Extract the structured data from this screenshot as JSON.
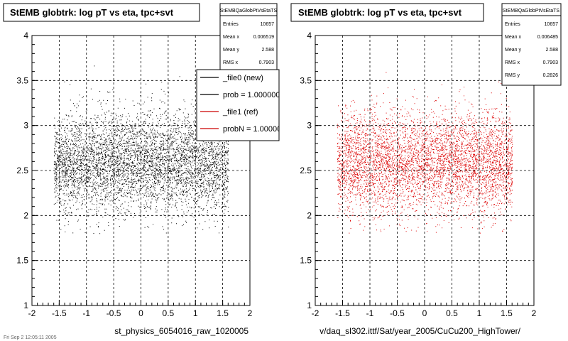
{
  "chart_data": [
    {
      "type": "scatter",
      "title": "StEMB globtrk: log pT vs eta, tpc+svt",
      "xlabel": "st_physics_6054016_raw_1020005",
      "ylabel": "",
      "xlim": [
        -2,
        2
      ],
      "ylim": [
        1,
        4
      ],
      "x_ticks": [
        "-2",
        "-1.5",
        "-1",
        "-0.5",
        "0",
        "0.5",
        "1",
        "1.5",
        "2"
      ],
      "y_ticks": [
        "1",
        "1.5",
        "2",
        "2.5",
        "3",
        "3.5",
        "4"
      ],
      "grid": true,
      "marker_color": "#000000",
      "distribution": {
        "x_range": [
          -1.6,
          1.6
        ],
        "y_mean": 2.588,
        "y_rms": 0.2826,
        "entries": 10657
      },
      "stats": {
        "name": "StEMBQaGlobPtVsEtaTS",
        "rows": [
          {
            "label": "Entries",
            "value": "10657"
          },
          {
            "label": "Mean x",
            "value": "0.006519"
          },
          {
            "label": "Mean y",
            "value": "2.588"
          },
          {
            "label": "RMS x",
            "value": "0.7903"
          }
        ]
      },
      "legend": {
        "placement": "top-right",
        "entries": [
          {
            "label": "_file0 (new)",
            "color": "#000000"
          },
          {
            "label": "prob = 1.000000",
            "color": "#000000"
          },
          {
            "label": "_file1 (ref)",
            "color": "#cc0000"
          },
          {
            "label": "probN = 1.000000",
            "color": "#cc0000"
          }
        ]
      }
    },
    {
      "type": "scatter",
      "title": "StEMB globtrk: log pT vs eta, tpc+svt",
      "xlabel": "v/daq_sl302.ittf/Sat/year_2005/CuCu200_HighTower/",
      "ylabel": "",
      "xlim": [
        -2,
        2
      ],
      "ylim": [
        1,
        4
      ],
      "x_ticks": [
        "-2",
        "-1.5",
        "-1",
        "-0.5",
        "0",
        "0.5",
        "1",
        "1.5",
        "2"
      ],
      "y_ticks": [
        "1",
        "1.5",
        "2",
        "2.5",
        "3",
        "3.5",
        "4"
      ],
      "grid": true,
      "marker_color": "#dd0000",
      "distribution": {
        "x_range": [
          -1.6,
          1.6
        ],
        "y_mean": 2.588,
        "y_rms": 0.2826,
        "entries": 10657
      },
      "stats": {
        "name": "StEMBQaGlobPtVsEtaTS",
        "rows": [
          {
            "label": "Entries",
            "value": "10657"
          },
          {
            "label": "Mean x",
            "value": "0.006485"
          },
          {
            "label": "Mean y",
            "value": "2.588"
          },
          {
            "label": "RMS x",
            "value": "0.7903"
          },
          {
            "label": "RMS y",
            "value": "0.2826"
          }
        ]
      }
    }
  ],
  "footer": {
    "left_note": "Fri Sep 2 12:05:11 2005"
  }
}
